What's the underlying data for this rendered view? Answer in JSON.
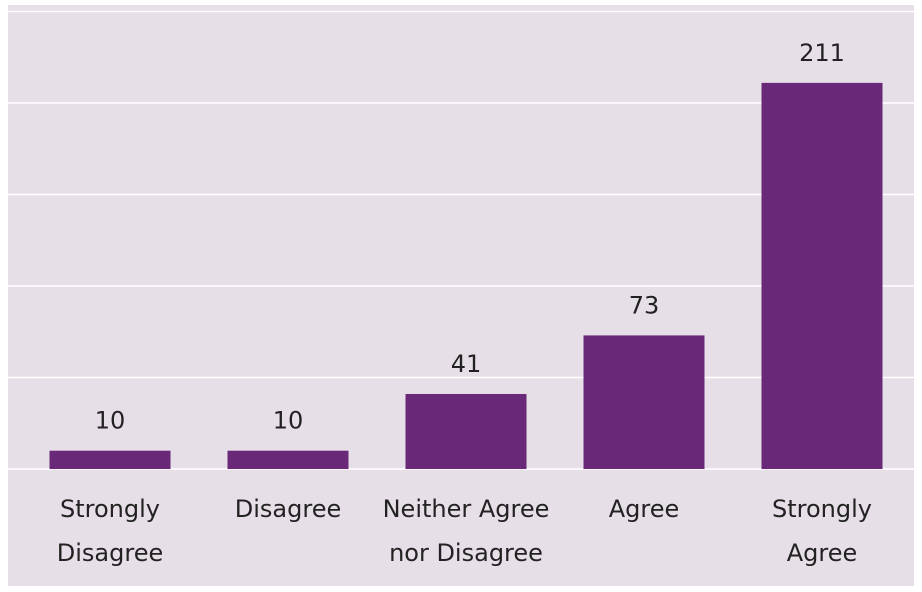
{
  "chart_data": {
    "type": "bar",
    "categories": [
      [
        "Strongly",
        "Disagree"
      ],
      [
        "Disagree"
      ],
      [
        "Neither Agree",
        "nor Disagree"
      ],
      [
        "Agree"
      ],
      [
        "Strongly",
        "Agree"
      ]
    ],
    "values": [
      10,
      10,
      41,
      73,
      211
    ],
    "value_labels": [
      "10",
      "10",
      "41",
      "73",
      "211"
    ],
    "title": "",
    "xlabel": "",
    "ylabel": "",
    "ylim": [
      0,
      250
    ],
    "grid": true,
    "gridline_step": 50,
    "legend": "none",
    "colors": {
      "panel_background": "#e7dfe7",
      "bar": "#6a2878",
      "gridline": "#ffffff",
      "text": "#222222"
    }
  }
}
